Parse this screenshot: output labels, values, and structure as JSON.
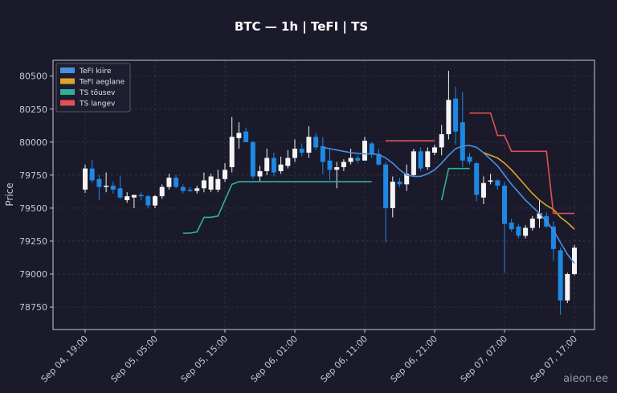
{
  "chart_data": {
    "type": "candlestick",
    "title": "BTC — 1h  |  TeFI  |  TS",
    "y_label": "Price",
    "watermark": "aieon.ee",
    "categories": [
      "Sep 04, 19:00",
      null,
      null,
      null,
      null,
      null,
      null,
      null,
      null,
      null,
      "Sep 05, 05:00",
      null,
      null,
      null,
      null,
      null,
      null,
      null,
      null,
      null,
      "Sep 05, 15:00",
      null,
      null,
      null,
      null,
      null,
      null,
      null,
      null,
      null,
      "Sep 06, 01:00",
      null,
      null,
      null,
      null,
      null,
      null,
      null,
      null,
      null,
      "Sep 06, 11:00",
      null,
      null,
      null,
      null,
      null,
      null,
      null,
      null,
      null,
      "Sep 06, 21:00",
      null,
      null,
      null,
      null,
      null,
      null,
      null,
      null,
      null,
      "Sep 07, 07:00",
      null,
      null,
      null,
      null,
      null,
      null,
      null,
      null,
      null,
      "Sep 07, 17:00"
    ],
    "open": [
      79640,
      79800,
      79720,
      79660,
      79670,
      79650,
      79560,
      79580,
      79600,
      79590,
      79520,
      79590,
      79660,
      79730,
      79660,
      79640,
      79630,
      79650,
      79640,
      79640,
      79720,
      79810,
      80030,
      80080,
      80000,
      79740,
      79780,
      79880,
      79780,
      79820,
      79880,
      79950,
      79920,
      80040,
      79970,
      79860,
      79790,
      79810,
      79850,
      79880,
      79860,
      79990,
      79910,
      79830,
      79500,
      79700,
      79680,
      79750,
      79930,
      79810,
      79920,
      79960,
      80060,
      80330,
      80150,
      79890,
      79840,
      79580,
      79700,
      79710,
      79670,
      79390,
      79360,
      79290,
      79350,
      79420,
      79440,
      79360,
      79180,
      78800,
      79000
    ],
    "high": [
      79830,
      79865,
      79750,
      79770,
      79700,
      79740,
      79620,
      79600,
      79620,
      79600,
      79600,
      79680,
      79760,
      79750,
      79680,
      79660,
      79670,
      79770,
      79760,
      79790,
      79840,
      80190,
      80150,
      80110,
      80010,
      79820,
      79950,
      79920,
      79890,
      79940,
      80020,
      79990,
      80120,
      80070,
      80040,
      79950,
      79850,
      79870,
      79950,
      79900,
      80040,
      80000,
      79950,
      79850,
      79740,
      79730,
      79830,
      79950,
      79960,
      79960,
      79980,
      80130,
      80540,
      80420,
      80380,
      79920,
      79850,
      79740,
      79760,
      79720,
      79700,
      79420,
      79380,
      79370,
      79440,
      79560,
      79470,
      79400,
      79200,
      79010,
      79220
    ],
    "low": [
      79615,
      79690,
      79560,
      79620,
      79610,
      79570,
      79540,
      79500,
      79560,
      79500,
      79500,
      79570,
      79640,
      79650,
      79610,
      79620,
      79610,
      79620,
      79620,
      79620,
      79700,
      79770,
      79950,
      80000,
      79720,
      79700,
      79750,
      79740,
      79760,
      79800,
      79850,
      79890,
      79880,
      79940,
      79760,
      79710,
      79650,
      79780,
      79830,
      79840,
      79860,
      79880,
      79820,
      79240,
      79430,
      79660,
      79630,
      79740,
      79780,
      79790,
      79900,
      79900,
      80020,
      79980,
      79810,
      79830,
      79550,
      79530,
      79680,
      79640,
      79010,
      79320,
      79270,
      79270,
      79330,
      79350,
      79350,
      79100,
      78690,
      78780,
      78990
    ],
    "close": [
      79800,
      79710,
      79660,
      79670,
      79640,
      79580,
      79590,
      79600,
      79590,
      79520,
      79590,
      79660,
      79730,
      79660,
      79630,
      79630,
      79650,
      79710,
      79740,
      79720,
      79790,
      80040,
      80070,
      80000,
      79740,
      79780,
      79880,
      79770,
      79830,
      79880,
      79950,
      79920,
      80040,
      79960,
      79850,
      79790,
      79810,
      79850,
      79880,
      79860,
      80010,
      79910,
      79830,
      79500,
      79700,
      79680,
      79760,
      79930,
      79800,
      79930,
      79960,
      80060,
      80320,
      80080,
      79860,
      79850,
      79600,
      79690,
      79710,
      79670,
      79380,
      79340,
      79290,
      79350,
      79420,
      79460,
      79360,
      79190,
      78800,
      79000,
      79200
    ],
    "up_color": "#f5f5f5",
    "down_color": "#1e88e5",
    "series": [
      {
        "name": "TeFI kiire",
        "color": "#4a90e2",
        "values": [
          null,
          null,
          null,
          null,
          null,
          null,
          null,
          null,
          null,
          null,
          null,
          null,
          null,
          null,
          null,
          null,
          null,
          null,
          null,
          null,
          null,
          null,
          null,
          null,
          null,
          null,
          null,
          null,
          null,
          null,
          null,
          null,
          null,
          null,
          79960,
          79950,
          79940,
          79930,
          79920,
          79915,
          79910,
          79910,
          79905,
          79880,
          79840,
          79790,
          79750,
          79740,
          79740,
          79760,
          79790,
          79840,
          79900,
          79950,
          79970,
          79975,
          79960,
          79920,
          79870,
          79820,
          79750,
          79680,
          79620,
          79560,
          79510,
          79460,
          79400,
          79330,
          79240,
          79150,
          79080
        ]
      },
      {
        "name": "TeFI aeglane",
        "color": "#e0a526",
        "values": [
          null,
          null,
          null,
          null,
          null,
          null,
          null,
          null,
          null,
          null,
          null,
          null,
          null,
          null,
          null,
          null,
          null,
          null,
          null,
          null,
          null,
          null,
          null,
          null,
          null,
          null,
          null,
          null,
          null,
          null,
          null,
          null,
          null,
          null,
          null,
          null,
          null,
          null,
          null,
          null,
          null,
          null,
          null,
          null,
          null,
          null,
          null,
          null,
          null,
          null,
          null,
          null,
          null,
          null,
          null,
          null,
          null,
          79920,
          79900,
          79880,
          79840,
          79790,
          79730,
          79670,
          79610,
          79560,
          79520,
          79490,
          79430,
          79390,
          79340
        ]
      },
      {
        "name": "TS tõusev",
        "color": "#2bb39a",
        "values": [
          null,
          null,
          null,
          null,
          null,
          null,
          null,
          null,
          null,
          null,
          null,
          null,
          null,
          null,
          79310,
          79310,
          79320,
          79430,
          79430,
          79440,
          79560,
          79680,
          79700,
          79700,
          79700,
          79700,
          79700,
          79700,
          79700,
          79700,
          79700,
          79700,
          79700,
          79700,
          79700,
          79700,
          79700,
          79700,
          79700,
          79700,
          79700,
          79700,
          null,
          null,
          null,
          null,
          null,
          null,
          null,
          null,
          null,
          79560,
          79800,
          79800,
          79800,
          79800,
          null,
          null,
          null,
          null,
          null,
          null,
          null,
          null,
          null,
          null,
          null,
          null,
          null,
          null,
          null
        ]
      },
      {
        "name": "TS langev",
        "color": "#e05252",
        "values": [
          null,
          null,
          null,
          null,
          null,
          null,
          null,
          null,
          null,
          null,
          null,
          null,
          null,
          null,
          null,
          null,
          null,
          null,
          null,
          null,
          null,
          null,
          null,
          null,
          null,
          null,
          null,
          null,
          null,
          null,
          null,
          null,
          null,
          null,
          null,
          null,
          null,
          null,
          null,
          null,
          null,
          null,
          null,
          80010,
          80010,
          80010,
          80010,
          80010,
          80010,
          80010,
          80010,
          null,
          null,
          null,
          null,
          80220,
          80220,
          80220,
          80220,
          80050,
          80050,
          79930,
          79930,
          79930,
          79930,
          79930,
          79930,
          79460,
          79460,
          79460,
          79460
        ]
      }
    ],
    "ylim": [
      78580,
      80620
    ],
    "yticks": [
      78750,
      79000,
      79250,
      79500,
      79750,
      80000,
      80250,
      80500
    ],
    "grid": true,
    "legend": "upper left"
  }
}
